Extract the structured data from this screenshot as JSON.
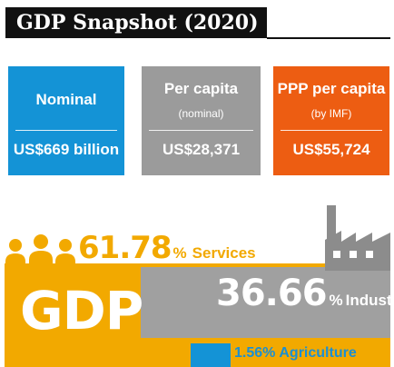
{
  "title": "GDP Snapshot (2020)",
  "boxes": {
    "nominal": {
      "head": "Nominal",
      "value": "US$669 billion",
      "color": "#1493d6"
    },
    "per_capita": {
      "head": "Per capita",
      "sub": "(nominal)",
      "value": "US$28,371",
      "color": "#9b9b9b"
    },
    "ppp": {
      "head": "PPP per capita",
      "sub": "(by IMF)",
      "value": "US$55,724",
      "color": "#ed5d12"
    }
  },
  "composition": {
    "gdp_label": "GDP",
    "services": {
      "percent": "61.78",
      "sign": "%",
      "label": "Services",
      "color": "#f2a900"
    },
    "industry": {
      "percent": "36.66",
      "sign": "%",
      "label": "Industry",
      "color": "#a0a0a0"
    },
    "agriculture": {
      "percent": "1.56",
      "sign": "%",
      "label": "Agriculture",
      "color": "#1493d6"
    },
    "icons": [
      "people-icon",
      "factory-icon"
    ]
  }
}
